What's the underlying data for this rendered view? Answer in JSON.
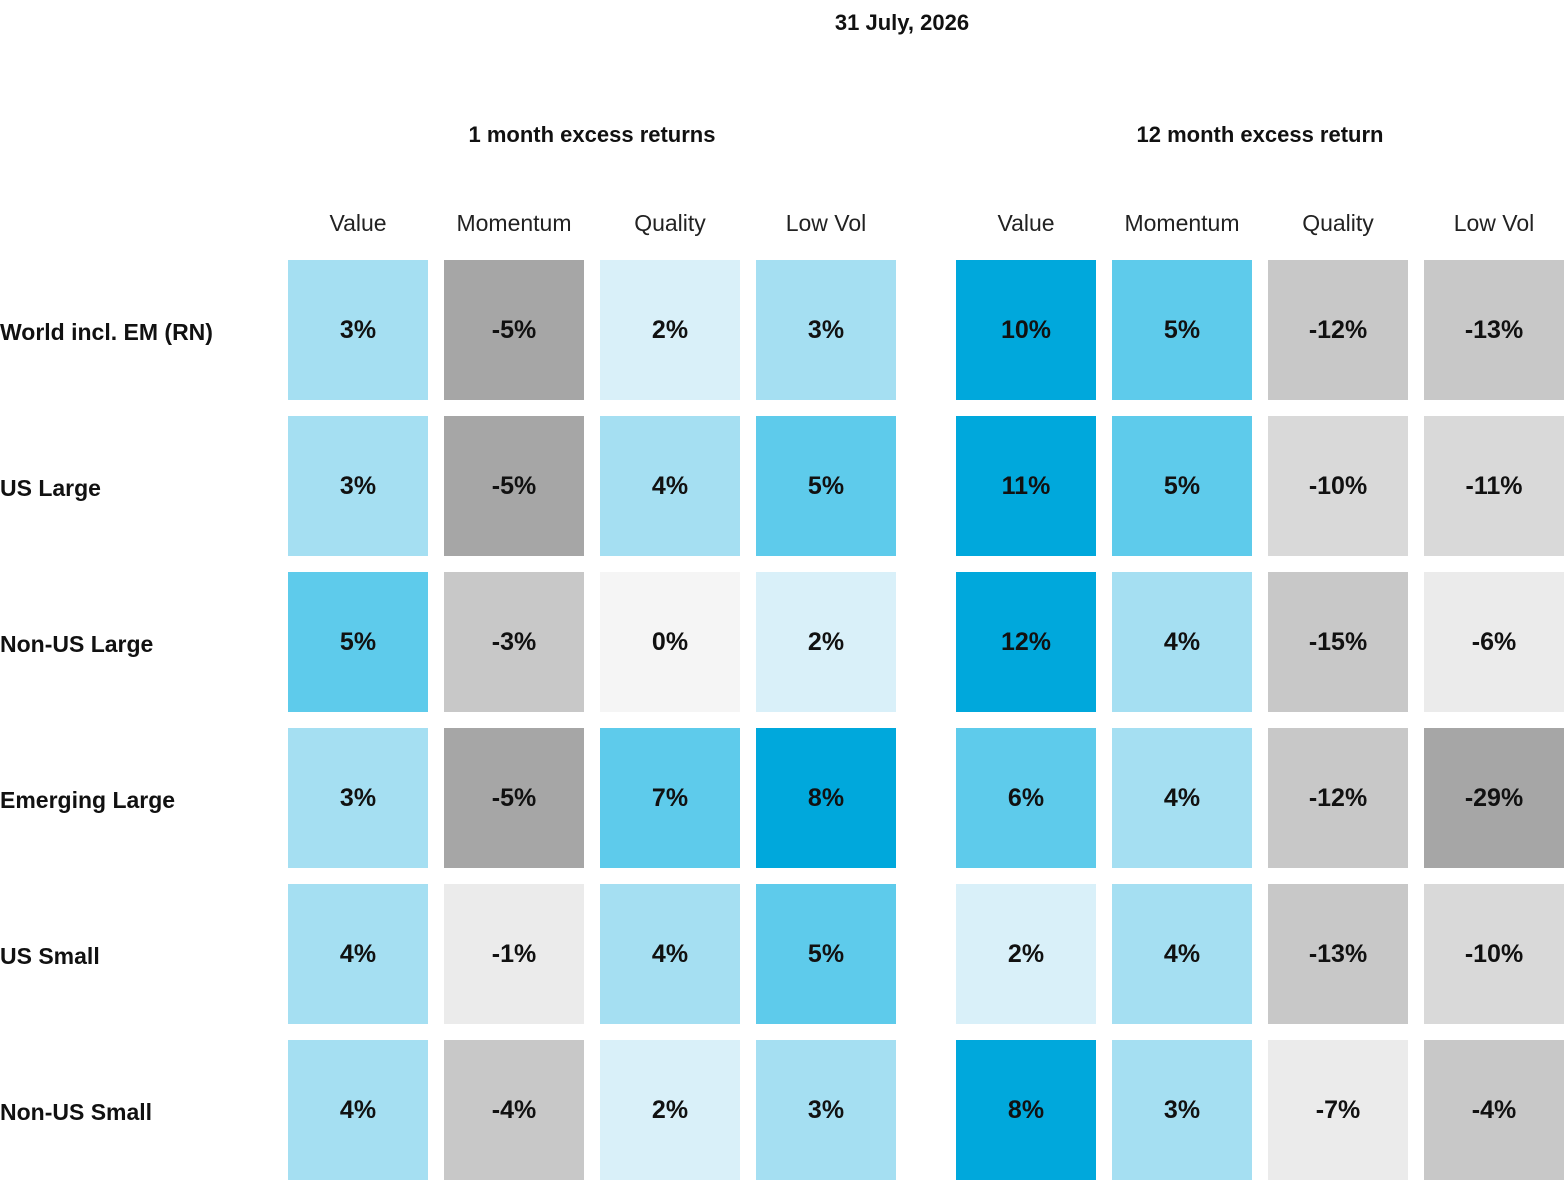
{
  "date": "31 July, 2026",
  "chart_data": {
    "type": "heatmap",
    "rows": [
      "World incl. EM (RN)",
      "US Large",
      "Non-US Large",
      "Emerging Large",
      "US Small",
      "Non-US Small"
    ],
    "panels": [
      {
        "title": "1 month excess returns",
        "columns": [
          "Value",
          "Momentum",
          "Quality",
          "Low Vol"
        ],
        "values": [
          [
            3,
            -5,
            2,
            3
          ],
          [
            3,
            -5,
            4,
            5
          ],
          [
            5,
            -3,
            0,
            2
          ],
          [
            3,
            -5,
            7,
            8
          ],
          [
            4,
            -1,
            4,
            5
          ],
          [
            4,
            -4,
            2,
            3
          ]
        ]
      },
      {
        "title": "12 month excess return",
        "columns": [
          "Value",
          "Momentum",
          "Quality",
          "Low Vol"
        ],
        "values": [
          [
            10,
            5,
            -12,
            -13
          ],
          [
            11,
            5,
            -10,
            -11
          ],
          [
            12,
            4,
            -15,
            -6
          ],
          [
            6,
            4,
            -12,
            -29
          ],
          [
            2,
            4,
            -13,
            -10
          ],
          [
            8,
            3,
            -7,
            -4
          ]
        ]
      }
    ],
    "unit": "%",
    "colors": {
      "strong_positive": "#00a8dc",
      "positive": "#5ecbeb",
      "mild_positive": "#a5dff2",
      "slight_positive": "#d9f0f9",
      "neutral": "#f5f5f5",
      "slight_negative": "#ebebeb",
      "mild_negative": "#d9d9d9",
      "negative": "#c8c8c8",
      "strong_negative": "#a6a6a6"
    }
  }
}
